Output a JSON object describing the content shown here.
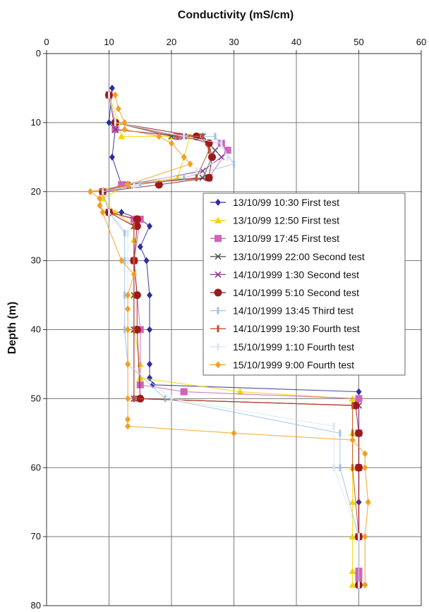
{
  "chart_data": {
    "type": "line",
    "title": "",
    "xlabel": "Conductivity (mS/cm)",
    "ylabel": "Depth (m)",
    "xlim": [
      0,
      60
    ],
    "ylim": [
      0,
      80
    ],
    "y_inverted": true,
    "x_axis_position": "top",
    "xticks": [
      0,
      10,
      20,
      30,
      40,
      50,
      60
    ],
    "yticks": [
      0,
      10,
      20,
      30,
      40,
      50,
      60,
      70,
      80
    ],
    "grid": true,
    "legend_position": "middle-right",
    "series": [
      {
        "name": "13/10/99 10:30 First test",
        "color": "#2e2e9a",
        "marker": "diamond",
        "points": [
          [
            10.5,
            5
          ],
          [
            10,
            10
          ],
          [
            11,
            11
          ],
          [
            10.5,
            15
          ],
          [
            12,
            19
          ],
          [
            9,
            20
          ],
          [
            10,
            23
          ],
          [
            12,
            23
          ],
          [
            15,
            24
          ],
          [
            16.5,
            25
          ],
          [
            15,
            28
          ],
          [
            16,
            30
          ],
          [
            16.5,
            35
          ],
          [
            16.5,
            40
          ],
          [
            16.5,
            45
          ],
          [
            16.5,
            47
          ],
          [
            17,
            48
          ],
          [
            50,
            49
          ],
          [
            50,
            55
          ],
          [
            50,
            60
          ],
          [
            50,
            65
          ],
          [
            50,
            70
          ],
          [
            50,
            75
          ],
          [
            50,
            77
          ]
        ]
      },
      {
        "name": "13/10/99 12:50 First test",
        "color": "#f4d400",
        "marker": "triangle",
        "points": [
          [
            10,
            6
          ],
          [
            11.5,
            10
          ],
          [
            12,
            12
          ],
          [
            20,
            12
          ],
          [
            23,
            12
          ],
          [
            21,
            18
          ],
          [
            13,
            19
          ],
          [
            9,
            21
          ],
          [
            11,
            23
          ],
          [
            14,
            25
          ],
          [
            14,
            27
          ],
          [
            14,
            30
          ],
          [
            14,
            35
          ],
          [
            14,
            40
          ],
          [
            15,
            45
          ],
          [
            15,
            47
          ],
          [
            31,
            49
          ],
          [
            49,
            50
          ],
          [
            49,
            55
          ],
          [
            49,
            60
          ],
          [
            49,
            65
          ],
          [
            49,
            70
          ],
          [
            49,
            75
          ],
          [
            49,
            77
          ]
        ]
      },
      {
        "name": "13/10/99 17:45 First test",
        "color": "#cc66bb",
        "marker": "square",
        "points": [
          [
            10,
            6
          ],
          [
            11,
            11
          ],
          [
            21,
            12
          ],
          [
            28,
            13
          ],
          [
            29,
            14
          ],
          [
            26,
            18
          ],
          [
            12,
            19
          ],
          [
            9,
            20
          ],
          [
            10,
            23
          ],
          [
            14,
            24
          ],
          [
            15,
            24
          ],
          [
            14,
            30
          ],
          [
            15,
            40
          ],
          [
            15,
            48
          ],
          [
            22,
            49
          ],
          [
            50,
            50
          ],
          [
            50,
            55
          ],
          [
            50,
            60
          ],
          [
            50,
            70
          ],
          [
            50,
            75
          ],
          [
            50,
            76
          ]
        ]
      },
      {
        "name": "13/10/1999 22:00 Second test",
        "color": "#555555",
        "marker": "x",
        "points": [
          [
            10,
            6
          ],
          [
            11,
            10
          ],
          [
            20,
            12
          ],
          [
            25,
            12
          ],
          [
            27,
            14
          ],
          [
            25,
            18
          ],
          [
            13,
            19
          ],
          [
            9,
            20
          ],
          [
            10,
            23
          ],
          [
            14,
            25
          ],
          [
            14,
            30
          ],
          [
            14,
            35
          ],
          [
            14,
            40
          ],
          [
            14,
            50
          ],
          [
            50,
            51
          ],
          [
            50,
            55
          ],
          [
            50,
            60
          ],
          [
            50,
            70
          ],
          [
            50,
            77
          ]
        ]
      },
      {
        "name": "14/10/1999 1:30 Second test",
        "color": "#8a3c8a",
        "marker": "x",
        "points": [
          [
            10,
            6
          ],
          [
            11,
            11
          ],
          [
            22,
            12
          ],
          [
            26,
            13
          ],
          [
            28,
            15
          ],
          [
            25,
            17
          ],
          [
            13,
            19
          ],
          [
            9,
            20
          ],
          [
            10,
            23
          ],
          [
            14,
            25
          ],
          [
            14,
            30
          ],
          [
            14,
            40
          ],
          [
            14,
            50
          ],
          [
            50,
            51
          ],
          [
            50,
            55
          ],
          [
            50,
            60
          ],
          [
            50,
            70
          ],
          [
            50,
            77
          ]
        ]
      },
      {
        "name": "14/10/1999 5:10 Second test",
        "color": "#9c1a1a",
        "marker": "circle",
        "points": [
          [
            10,
            6
          ],
          [
            11,
            10
          ],
          [
            24,
            12
          ],
          [
            26,
            13
          ],
          [
            26.5,
            15
          ],
          [
            26,
            18
          ],
          [
            18,
            19
          ],
          [
            9,
            20
          ],
          [
            10,
            23
          ],
          [
            14.5,
            24
          ],
          [
            14.5,
            25
          ],
          [
            14,
            30
          ],
          [
            14.5,
            35
          ],
          [
            14.5,
            40
          ],
          [
            15,
            50
          ],
          [
            49.5,
            51
          ],
          [
            50,
            55
          ],
          [
            50,
            60
          ],
          [
            50,
            70
          ],
          [
            50,
            77
          ]
        ]
      },
      {
        "name": "14/10/1999 13:45 Third test",
        "color": "#9fc3e6",
        "marker": "dash",
        "points": [
          [
            10,
            6
          ],
          [
            11,
            10
          ],
          [
            22,
            12
          ],
          [
            27,
            12
          ],
          [
            30,
            16
          ],
          [
            22,
            18
          ],
          [
            15,
            19
          ],
          [
            9,
            20
          ],
          [
            10,
            23
          ],
          [
            12.5,
            26
          ],
          [
            12.5,
            30
          ],
          [
            12.5,
            35
          ],
          [
            12.5,
            40
          ],
          [
            13,
            45
          ],
          [
            19,
            50
          ],
          [
            47,
            55
          ],
          [
            47,
            60
          ],
          [
            50,
            70
          ],
          [
            50,
            77
          ]
        ]
      },
      {
        "name": "14/10/1999 19:30 Fourth test",
        "color": "#c0502a",
        "marker": "dash",
        "points": [
          [
            10,
            6
          ],
          [
            11,
            10
          ],
          [
            21,
            12
          ],
          [
            25,
            12
          ],
          [
            26,
            14
          ],
          [
            24,
            18
          ],
          [
            13,
            19
          ],
          [
            9,
            20
          ],
          [
            10,
            23
          ],
          [
            14,
            25
          ],
          [
            14,
            30
          ],
          [
            14,
            40
          ],
          [
            14,
            50
          ],
          [
            49,
            51
          ],
          [
            49,
            55
          ],
          [
            49,
            60
          ],
          [
            50,
            70
          ],
          [
            50,
            77
          ]
        ]
      },
      {
        "name": "15/10/1999 1:10 Fourth test",
        "color": "#d8e6f4",
        "marker": "dash",
        "points": [
          [
            10,
            6
          ],
          [
            11,
            10
          ],
          [
            22,
            12
          ],
          [
            28,
            13
          ],
          [
            29,
            15
          ],
          [
            24,
            17
          ],
          [
            14,
            19
          ],
          [
            9,
            20
          ],
          [
            10,
            23
          ],
          [
            13,
            26
          ],
          [
            13,
            30
          ],
          [
            13,
            35
          ],
          [
            13,
            40
          ],
          [
            13,
            45
          ],
          [
            20,
            50
          ],
          [
            46,
            54
          ],
          [
            46,
            60
          ],
          [
            50,
            70
          ],
          [
            50,
            77
          ]
        ]
      },
      {
        "name": "15/10/1999 9:00 Fourth test",
        "color": "#f0a020",
        "marker": "diamond",
        "points": [
          [
            11,
            6
          ],
          [
            11.5,
            8
          ],
          [
            12.5,
            10
          ],
          [
            12.5,
            11
          ],
          [
            18,
            12
          ],
          [
            20,
            13
          ],
          [
            22,
            15
          ],
          [
            23,
            16
          ],
          [
            13,
            19
          ],
          [
            7,
            20
          ],
          [
            8.5,
            21
          ],
          [
            9,
            23
          ],
          [
            8.5,
            22
          ],
          [
            12,
            30
          ],
          [
            14,
            32
          ],
          [
            13,
            35
          ],
          [
            13,
            37
          ],
          [
            13,
            40
          ],
          [
            13,
            45
          ],
          [
            13,
            50
          ],
          [
            13,
            53
          ],
          [
            13,
            54
          ],
          [
            30,
            55
          ],
          [
            49,
            56
          ],
          [
            51,
            58
          ],
          [
            51,
            60
          ],
          [
            51.5,
            65
          ],
          [
            51,
            70
          ],
          [
            51,
            77
          ]
        ]
      }
    ]
  }
}
